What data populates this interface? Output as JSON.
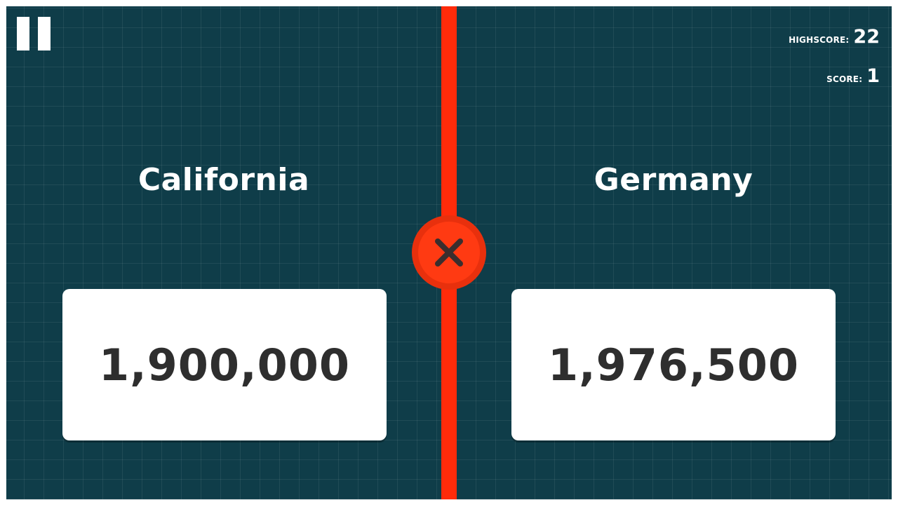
{
  "hud": {
    "highscore_label": "HIGHSCORE:",
    "highscore_value": "22",
    "score_label": "SCORE:",
    "score_value": "1"
  },
  "left": {
    "name": "California",
    "value": "1,900,000"
  },
  "right": {
    "name": "Germany",
    "value": "1,976,500"
  },
  "result_badge": {
    "icon": "close-icon",
    "state": "wrong"
  },
  "colors": {
    "background": "#0f3d49",
    "divider": "#ff2b0a",
    "badge": "#ff3a12",
    "card": "#ffffff",
    "card_text": "#2e2e2e"
  },
  "icons": {
    "pause": "pause-icon",
    "result": "close-icon"
  }
}
